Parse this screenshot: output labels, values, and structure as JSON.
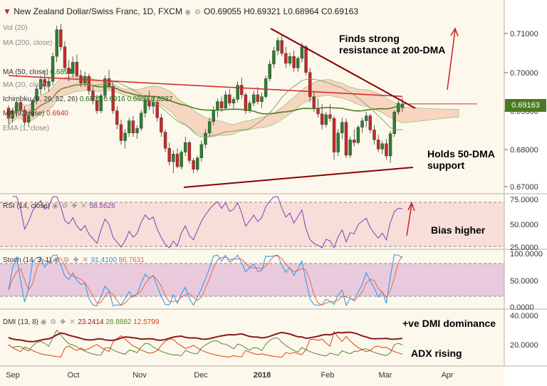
{
  "header": {
    "title": "New Zealand Dollar/Swiss Franc, 1D, FXCM",
    "open": "O0.69055",
    "high": "H0.69321",
    "low": "L0.68964",
    "close": "C0.69163"
  },
  "price_axis": {
    "ticks": [
      "0.71000",
      "0.70000",
      "0.69000",
      "0.68000",
      "0.67000"
    ],
    "current_price": "0.69163"
  },
  "time_axis": {
    "labels": [
      "Sep",
      "Oct",
      "Nov",
      "Dec",
      "2018",
      "Feb",
      "Mar",
      "Apr"
    ]
  },
  "indicators": {
    "vol": "Vol (20)",
    "ma200": "MA (200, close)",
    "ma50": "MA (50, close)",
    "ma20": "MA (20, close)",
    "ma50_value": "0.6894",
    "ichimoku": "Ichimoku (9, 26, 52, 26)",
    "ichimoku_values": [
      "0.6835",
      "0.6916",
      "0.6953",
      "0.6837"
    ],
    "ma_other": "MA (9, close)",
    "ma_other_value": "0.6940",
    "ema": "EMA (1, close)"
  },
  "rsi": {
    "label": "RSI (14, close)",
    "value": "58.5626",
    "ticks": [
      "75.0000",
      "50.0000",
      "25.0000"
    ]
  },
  "stoch": {
    "label": "Stoch (14, 3, 1)",
    "k_value": "91.4100",
    "d_value": "86.7631",
    "ticks": [
      "100.0000",
      "50.0000",
      "0.0000"
    ]
  },
  "dmi": {
    "label": "DMI (13, 8)",
    "values": [
      "23.2414",
      "28.8882",
      "12.5799"
    ],
    "ticks": [
      "40.0000",
      "20.0000"
    ]
  },
  "annotations": {
    "resistance": [
      "Finds strong",
      "resistance at 200-DMA"
    ],
    "support": [
      "Holds 50-DMA",
      "support"
    ],
    "bias": "Bias higher",
    "dmi_dom": "+ve DMI dominance",
    "adx": "ADX rising"
  },
  "colors": {
    "up_candle": "#2e7d32",
    "down_candle": "#c62828",
    "ma200": "#d32f2f",
    "ma50": "#4e7d24",
    "rsi": "#7b3fb5",
    "stoch_k": "#2196f3",
    "stoch_d": "#e8684a",
    "adx": "#8b1a1a",
    "di_plus": "#558b2f",
    "di_minus": "#d84315",
    "trendline": "#8b0000",
    "arrow": "#cc1f1f"
  },
  "chart_data": {
    "type": "candlestick",
    "symbol": "NZDCHF",
    "timeframe": "1D",
    "ylim": [
      0.6705,
      0.7135
    ],
    "ohlc": [
      [
        0.6905,
        0.6912,
        0.6862,
        0.6878
      ],
      [
        0.6878,
        0.6905,
        0.6868,
        0.6898
      ],
      [
        0.6898,
        0.6925,
        0.6885,
        0.692
      ],
      [
        0.692,
        0.6938,
        0.6895,
        0.69
      ],
      [
        0.69,
        0.691,
        0.686,
        0.6868
      ],
      [
        0.6868,
        0.689,
        0.6855,
        0.6885
      ],
      [
        0.6885,
        0.693,
        0.688,
        0.6925
      ],
      [
        0.6925,
        0.6965,
        0.6915,
        0.6955
      ],
      [
        0.6955,
        0.699,
        0.694,
        0.698
      ],
      [
        0.698,
        0.7,
        0.695,
        0.6962
      ],
      [
        0.6962,
        0.6985,
        0.6948,
        0.6975
      ],
      [
        0.6975,
        0.705,
        0.6965,
        0.704
      ],
      [
        0.704,
        0.712,
        0.7025,
        0.711
      ],
      [
        0.711,
        0.7125,
        0.7055,
        0.7065
      ],
      [
        0.7065,
        0.708,
        0.7,
        0.701
      ],
      [
        0.701,
        0.703,
        0.6975,
        0.6995
      ],
      [
        0.6995,
        0.704,
        0.6985,
        0.7025
      ],
      [
        0.7025,
        0.7045,
        0.6985,
        0.699
      ],
      [
        0.699,
        0.7005,
        0.696,
        0.697
      ],
      [
        0.697,
        0.7,
        0.696,
        0.6988
      ],
      [
        0.6988,
        0.6995,
        0.694,
        0.695
      ],
      [
        0.695,
        0.6965,
        0.6915,
        0.6925
      ],
      [
        0.6925,
        0.694,
        0.689,
        0.6898
      ],
      [
        0.6898,
        0.6945,
        0.6892,
        0.6938
      ],
      [
        0.6938,
        0.699,
        0.693,
        0.6982
      ],
      [
        0.6982,
        0.7005,
        0.6955,
        0.6962
      ],
      [
        0.6962,
        0.6975,
        0.689,
        0.6898
      ],
      [
        0.6898,
        0.691,
        0.685,
        0.6862
      ],
      [
        0.6862,
        0.6875,
        0.681,
        0.682
      ],
      [
        0.682,
        0.685,
        0.68,
        0.684
      ],
      [
        0.684,
        0.688,
        0.683,
        0.6872
      ],
      [
        0.6872,
        0.6885,
        0.683,
        0.684
      ],
      [
        0.684,
        0.686,
        0.6825,
        0.6852
      ],
      [
        0.6852,
        0.69,
        0.6845,
        0.6892
      ],
      [
        0.6892,
        0.6935,
        0.688,
        0.6925
      ],
      [
        0.6925,
        0.695,
        0.69,
        0.691
      ],
      [
        0.691,
        0.6935,
        0.689,
        0.692
      ],
      [
        0.692,
        0.6925,
        0.687,
        0.688
      ],
      [
        0.688,
        0.689,
        0.683,
        0.6842
      ],
      [
        0.6842,
        0.685,
        0.679,
        0.68
      ],
      [
        0.68,
        0.6815,
        0.6755,
        0.6765
      ],
      [
        0.6765,
        0.6795,
        0.6735,
        0.6785
      ],
      [
        0.6785,
        0.68,
        0.6748,
        0.6752
      ],
      [
        0.6752,
        0.6795,
        0.6745,
        0.679
      ],
      [
        0.679,
        0.683,
        0.678,
        0.6815
      ],
      [
        0.6815,
        0.682,
        0.676,
        0.6768
      ],
      [
        0.6768,
        0.6775,
        0.6735,
        0.6745
      ],
      [
        0.6745,
        0.678,
        0.6738,
        0.6775
      ],
      [
        0.6775,
        0.682,
        0.6765,
        0.681
      ],
      [
        0.681,
        0.685,
        0.68,
        0.684
      ],
      [
        0.684,
        0.688,
        0.683,
        0.687
      ],
      [
        0.687,
        0.691,
        0.686,
        0.69
      ],
      [
        0.69,
        0.693,
        0.688,
        0.6922
      ],
      [
        0.6922,
        0.6935,
        0.6895,
        0.6905
      ],
      [
        0.6905,
        0.695,
        0.69,
        0.694
      ],
      [
        0.694,
        0.6955,
        0.691,
        0.6918
      ],
      [
        0.6918,
        0.6935,
        0.69,
        0.6928
      ],
      [
        0.6928,
        0.6975,
        0.692,
        0.6965
      ],
      [
        0.6965,
        0.6985,
        0.693,
        0.694
      ],
      [
        0.694,
        0.6945,
        0.689,
        0.6898
      ],
      [
        0.6898,
        0.6925,
        0.6892,
        0.6918
      ],
      [
        0.6918,
        0.695,
        0.691,
        0.694
      ],
      [
        0.694,
        0.696,
        0.6915,
        0.6922
      ],
      [
        0.6922,
        0.6945,
        0.6905,
        0.6935
      ],
      [
        0.6935,
        0.699,
        0.693,
        0.6982
      ],
      [
        0.6982,
        0.703,
        0.6975,
        0.702
      ],
      [
        0.702,
        0.7065,
        0.701,
        0.7055
      ],
      [
        0.7055,
        0.709,
        0.7045,
        0.7082
      ],
      [
        0.7082,
        0.7095,
        0.704,
        0.7048
      ],
      [
        0.7048,
        0.7065,
        0.701,
        0.7022
      ],
      [
        0.7022,
        0.705,
        0.7015,
        0.704
      ],
      [
        0.704,
        0.7055,
        0.7,
        0.701
      ],
      [
        0.701,
        0.704,
        0.7,
        0.7035
      ],
      [
        0.7035,
        0.7075,
        0.7025,
        0.7065
      ],
      [
        0.7065,
        0.707,
        0.699,
        0.6998
      ],
      [
        0.6998,
        0.701,
        0.692,
        0.6935
      ],
      [
        0.6935,
        0.695,
        0.6895,
        0.6905
      ],
      [
        0.6905,
        0.693,
        0.688,
        0.689
      ],
      [
        0.689,
        0.6915,
        0.685,
        0.6862
      ],
      [
        0.6862,
        0.6895,
        0.6855,
        0.6888
      ],
      [
        0.6888,
        0.6915,
        0.687,
        0.6878
      ],
      [
        0.6878,
        0.6885,
        0.677,
        0.679
      ],
      [
        0.679,
        0.685,
        0.678,
        0.684
      ],
      [
        0.684,
        0.688,
        0.6825,
        0.6868
      ],
      [
        0.6868,
        0.6878,
        0.6775,
        0.6782
      ],
      [
        0.6782,
        0.683,
        0.6775,
        0.6822
      ],
      [
        0.6822,
        0.685,
        0.6805,
        0.6815
      ],
      [
        0.6815,
        0.686,
        0.681,
        0.6855
      ],
      [
        0.6855,
        0.688,
        0.684,
        0.6872
      ],
      [
        0.6872,
        0.6895,
        0.6855,
        0.6885
      ],
      [
        0.6885,
        0.689,
        0.684,
        0.6848
      ],
      [
        0.6848,
        0.686,
        0.681,
        0.6822
      ],
      [
        0.6822,
        0.6835,
        0.679,
        0.6798
      ],
      [
        0.6798,
        0.682,
        0.6785,
        0.6812
      ],
      [
        0.6812,
        0.6825,
        0.677,
        0.678
      ],
      [
        0.678,
        0.6845,
        0.6762,
        0.6838
      ],
      [
        0.6838,
        0.69,
        0.683,
        0.6895
      ],
      [
        0.6895,
        0.6925,
        0.6888,
        0.6918
      ],
      [
        0.6906,
        0.6932,
        0.6896,
        0.6916
      ]
    ]
  }
}
